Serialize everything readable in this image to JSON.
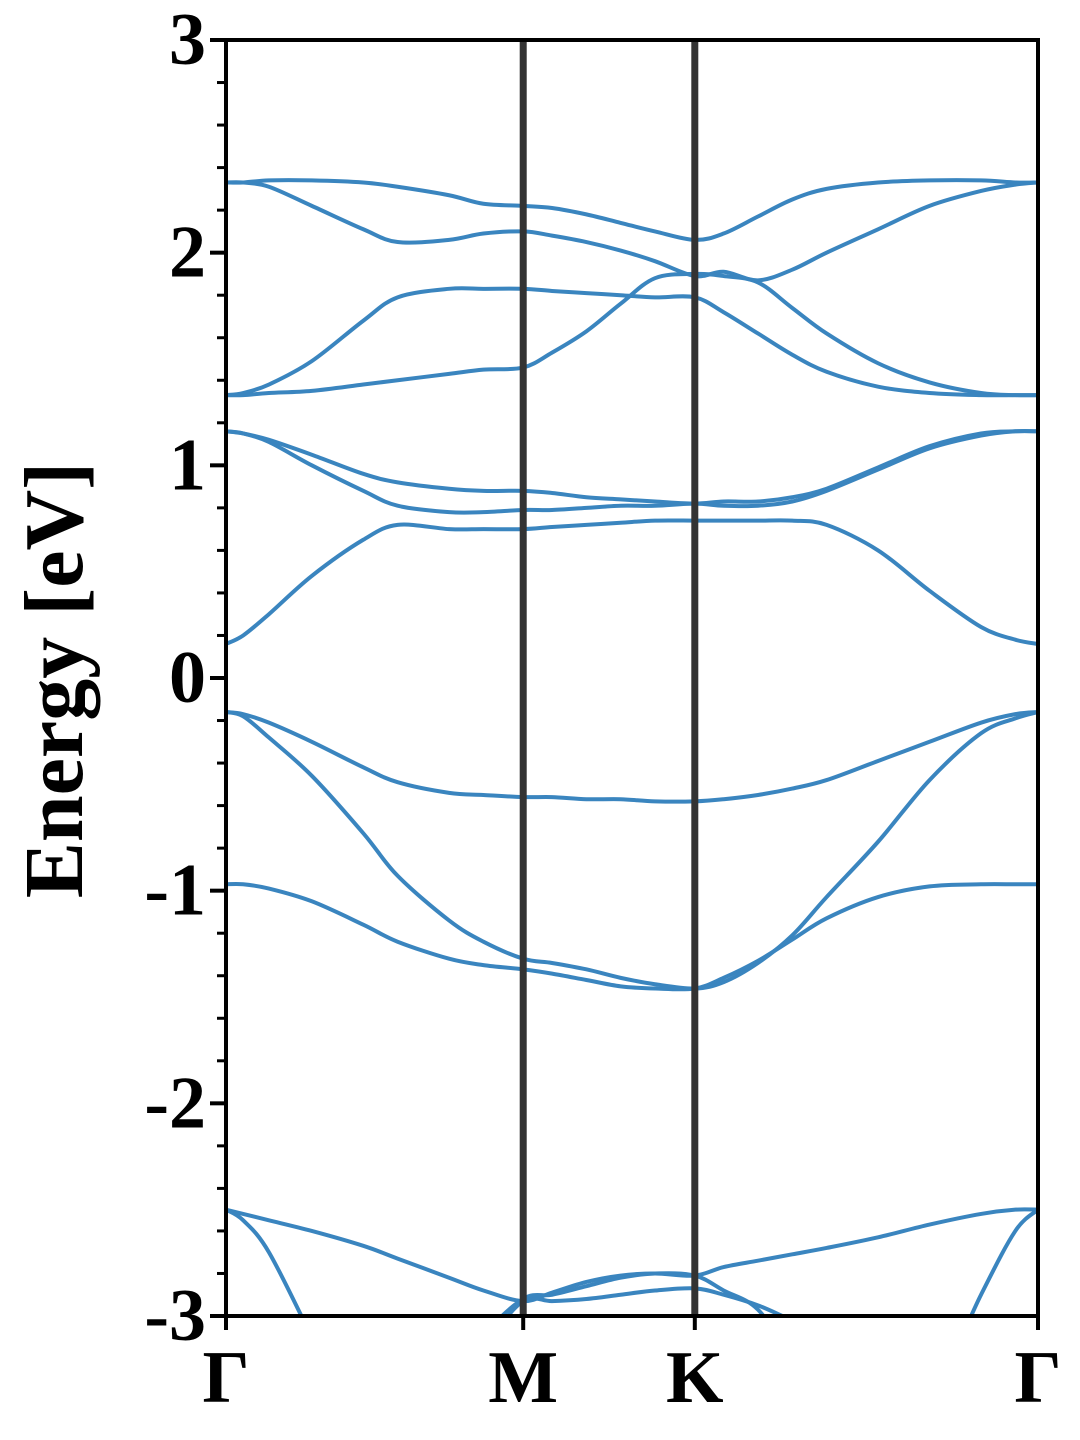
{
  "chart_data": {
    "type": "line",
    "title": "",
    "ylabel": "Energy [eV]",
    "xlabel": "",
    "ylim": [
      -3,
      3
    ],
    "yticks": [
      -3,
      -2,
      -1,
      0,
      1,
      2,
      3
    ],
    "ytick_labels": [
      "-3",
      "-2",
      "-1",
      "0",
      "1",
      "2",
      "3"
    ],
    "y_minor_step": 0.2,
    "grid": false,
    "legend": "none",
    "high_symmetry_points": [
      {
        "label": "Γ",
        "k": 0
      },
      {
        "label": "M",
        "k": 1.732
      },
      {
        "label": "K",
        "k": 2.732
      },
      {
        "label": "Γ",
        "k": 4.732
      }
    ],
    "x_range": [
      0,
      4.732
    ],
    "colors": {
      "bands": "#3a85bf",
      "kpoint_lines": "#333333",
      "axes": "#000000"
    },
    "x": [
      0,
      0.1,
      0.25,
      0.5,
      0.8,
      1.0,
      1.3,
      1.5,
      1.732,
      1.9,
      2.1,
      2.3,
      2.5,
      2.732,
      2.9,
      3.1,
      3.3,
      3.5,
      3.8,
      4.1,
      4.4,
      4.6,
      4.732
    ],
    "series": [
      {
        "values": [
          -3.05,
          -3.05,
          -3.06,
          -3.08,
          -3.12,
          -3.15,
          -3.15,
          -3.12,
          -2.93,
          -2.93,
          -2.92,
          -2.9,
          -2.88,
          -2.87,
          -2.9,
          -2.95,
          -3.02,
          -3.08,
          -3.1,
          -3.08,
          -3.05,
          -3.05,
          -3.05
        ]
      },
      {
        "values": [
          -2.5,
          -2.52,
          -2.55,
          -2.6,
          -2.67,
          -2.73,
          -2.82,
          -2.88,
          -2.93,
          -2.89,
          -2.84,
          -2.81,
          -2.8,
          -2.81,
          -2.77,
          -2.74,
          -2.71,
          -2.68,
          -2.63,
          -2.57,
          -2.52,
          -2.5,
          -2.5
        ]
      },
      {
        "values": [
          -2.5,
          -2.55,
          -2.7,
          -3.1,
          -3.6,
          -3.6,
          -3.4,
          -3.1,
          -2.92,
          -2.9,
          -2.86,
          -2.82,
          -2.8,
          -2.81,
          -2.88,
          -2.97,
          -3.2,
          -3.4,
          -3.6,
          -3.4,
          -2.9,
          -2.6,
          -2.5
        ]
      },
      {
        "values": [
          -0.97,
          -0.97,
          -0.99,
          -1.05,
          -1.16,
          -1.24,
          -1.32,
          -1.35,
          -1.37,
          -1.39,
          -1.42,
          -1.45,
          -1.46,
          -1.46,
          -1.41,
          -1.33,
          -1.23,
          -1.13,
          -1.03,
          -0.98,
          -0.97,
          -0.97,
          -0.97
        ]
      },
      {
        "values": [
          -0.16,
          -0.18,
          -0.28,
          -0.46,
          -0.73,
          -0.93,
          -1.14,
          -1.24,
          -1.32,
          -1.34,
          -1.37,
          -1.41,
          -1.44,
          -1.46,
          -1.43,
          -1.34,
          -1.21,
          -1.03,
          -0.77,
          -0.48,
          -0.26,
          -0.19,
          -0.16
        ]
      },
      {
        "values": [
          -0.16,
          -0.17,
          -0.21,
          -0.3,
          -0.42,
          -0.49,
          -0.54,
          -0.55,
          -0.56,
          -0.56,
          -0.57,
          -0.57,
          -0.58,
          -0.58,
          -0.57,
          -0.55,
          -0.52,
          -0.48,
          -0.39,
          -0.3,
          -0.21,
          -0.17,
          -0.16
        ]
      },
      {
        "values": [
          0.16,
          0.2,
          0.3,
          0.48,
          0.65,
          0.72,
          0.7,
          0.7,
          0.7,
          0.71,
          0.72,
          0.73,
          0.74,
          0.74,
          0.74,
          0.74,
          0.74,
          0.72,
          0.6,
          0.41,
          0.24,
          0.18,
          0.16
        ]
      },
      {
        "values": [
          1.16,
          1.15,
          1.11,
          1.0,
          0.88,
          0.81,
          0.78,
          0.78,
          0.79,
          0.79,
          0.8,
          0.81,
          0.81,
          0.82,
          0.81,
          0.81,
          0.83,
          0.88,
          0.98,
          1.08,
          1.14,
          1.16,
          1.16
        ]
      },
      {
        "values": [
          1.16,
          1.15,
          1.12,
          1.05,
          0.96,
          0.92,
          0.89,
          0.88,
          0.88,
          0.87,
          0.85,
          0.84,
          0.83,
          0.82,
          0.83,
          0.83,
          0.85,
          0.89,
          0.99,
          1.09,
          1.15,
          1.16,
          1.16
        ]
      },
      {
        "values": [
          1.33,
          1.33,
          1.34,
          1.35,
          1.38,
          1.4,
          1.43,
          1.45,
          1.46,
          1.53,
          1.63,
          1.76,
          1.88,
          1.9,
          1.89,
          1.86,
          1.74,
          1.62,
          1.48,
          1.39,
          1.34,
          1.33,
          1.33
        ]
      },
      {
        "values": [
          1.33,
          1.34,
          1.38,
          1.49,
          1.68,
          1.79,
          1.83,
          1.83,
          1.83,
          1.82,
          1.81,
          1.8,
          1.79,
          1.79,
          1.72,
          1.62,
          1.52,
          1.44,
          1.37,
          1.34,
          1.33,
          1.33,
          1.33
        ]
      },
      {
        "values": [
          2.33,
          2.33,
          2.31,
          2.22,
          2.11,
          2.05,
          2.06,
          2.09,
          2.1,
          2.08,
          2.05,
          2.01,
          1.96,
          1.89,
          1.91,
          1.87,
          1.92,
          2.0,
          2.11,
          2.22,
          2.29,
          2.32,
          2.33
        ]
      },
      {
        "values": [
          2.33,
          2.33,
          2.34,
          2.34,
          2.33,
          2.31,
          2.27,
          2.23,
          2.22,
          2.21,
          2.18,
          2.14,
          2.1,
          2.06,
          2.09,
          2.17,
          2.25,
          2.3,
          2.33,
          2.34,
          2.34,
          2.33,
          2.33
        ]
      }
    ]
  }
}
